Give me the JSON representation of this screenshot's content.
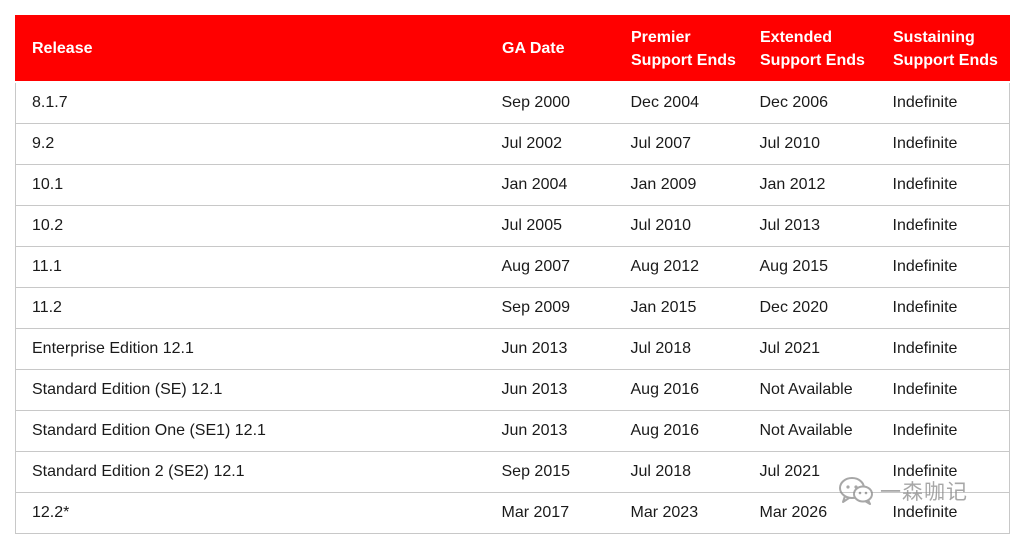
{
  "table": {
    "headers": {
      "release": "Release",
      "ga_date": "GA Date",
      "premier_line1": "Premier",
      "premier_line2": "Support Ends",
      "extended_line1": "Extended",
      "extended_line2": "Support Ends",
      "sustaining_line1": "Sustaining",
      "sustaining_line2": "Support Ends"
    },
    "rows": [
      {
        "release": "8.1.7",
        "ga_date": "Sep 2000",
        "premier": "Dec 2004",
        "extended": "Dec 2006",
        "sustaining": "Indefinite"
      },
      {
        "release": "9.2",
        "ga_date": "Jul 2002",
        "premier": "Jul 2007",
        "extended": "Jul 2010",
        "sustaining": "Indefinite"
      },
      {
        "release": "10.1",
        "ga_date": "Jan 2004",
        "premier": "Jan 2009",
        "extended": "Jan 2012",
        "sustaining": "Indefinite"
      },
      {
        "release": "10.2",
        "ga_date": "Jul 2005",
        "premier": "Jul 2010",
        "extended": "Jul 2013",
        "sustaining": "Indefinite"
      },
      {
        "release": "11.1",
        "ga_date": "Aug 2007",
        "premier": "Aug 2012",
        "extended": "Aug 2015",
        "sustaining": "Indefinite"
      },
      {
        "release": "11.2",
        "ga_date": "Sep 2009",
        "premier": "Jan 2015",
        "extended": "Dec 2020",
        "sustaining": "Indefinite"
      },
      {
        "release": "Enterprise Edition 12.1",
        "ga_date": "Jun 2013",
        "premier": "Jul 2018",
        "extended": "Jul 2021",
        "sustaining": "Indefinite"
      },
      {
        "release": "Standard Edition (SE) 12.1",
        "ga_date": "Jun 2013",
        "premier": "Aug 2016",
        "extended": "Not Available",
        "sustaining": "Indefinite"
      },
      {
        "release": "Standard Edition One (SE1) 12.1",
        "ga_date": "Jun 2013",
        "premier": "Aug 2016",
        "extended": "Not Available",
        "sustaining": "Indefinite"
      },
      {
        "release": "Standard Edition 2 (SE2) 12.1",
        "ga_date": "Sep 2015",
        "premier": "Jul 2018",
        "extended": "Jul 2021",
        "sustaining": "Indefinite"
      },
      {
        "release": "12.2*",
        "ga_date": "Mar 2017",
        "premier": "Mar 2023",
        "extended": "Mar 2026",
        "sustaining": "Indefinite"
      }
    ]
  },
  "watermark": {
    "text": "一森咖记",
    "icon": "wechat-icon"
  },
  "colors": {
    "header_bg": "#ff0000",
    "header_text": "#ffffff",
    "grid_line": "#c8c8c8"
  }
}
